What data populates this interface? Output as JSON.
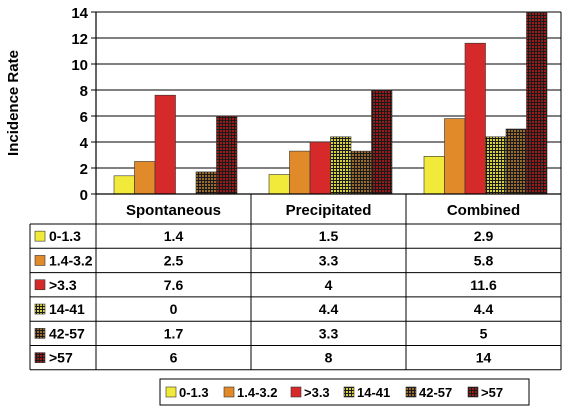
{
  "chart_data": {
    "type": "bar",
    "ylabel": "Incidence Rate",
    "ylim": [
      0,
      14
    ],
    "yticks": [
      0,
      2,
      4,
      6,
      8,
      10,
      12,
      14
    ],
    "grid": true,
    "legend_placement": "bottom",
    "categories": [
      "Spontaneous",
      "Precipitated",
      "Combined"
    ],
    "series": [
      {
        "name": "0-1.3",
        "values": [
          1.4,
          1.5,
          2.9
        ],
        "labels": [
          "1.4",
          "1.5",
          "2.9"
        ],
        "color": "#f2ea3a",
        "pattern": "solid"
      },
      {
        "name": "1.4-3.2",
        "values": [
          2.5,
          3.3,
          5.8
        ],
        "labels": [
          "2.5",
          "3.3",
          "5.8"
        ],
        "color": "#e08a2a",
        "pattern": "solid"
      },
      {
        "name": ">3.3",
        "values": [
          7.6,
          4,
          11.6
        ],
        "labels": [
          "7.6",
          "4",
          "11.6"
        ],
        "color": "#d62a2a",
        "pattern": "solid"
      },
      {
        "name": "14-41",
        "values": [
          0,
          4.4,
          4.4
        ],
        "labels": [
          "0",
          "4.4",
          "4.4"
        ],
        "color": "#d8d23a",
        "pattern": "grid"
      },
      {
        "name": "42-57",
        "values": [
          1.7,
          3.3,
          5
        ],
        "labels": [
          "1.7",
          "3.3",
          "5"
        ],
        "color": "#9a6a2a",
        "pattern": "grid"
      },
      {
        "name": ">57",
        "values": [
          6,
          8,
          14
        ],
        "labels": [
          "6",
          "8",
          "14"
        ],
        "color": "#9a1a1a",
        "pattern": "grid"
      }
    ]
  }
}
